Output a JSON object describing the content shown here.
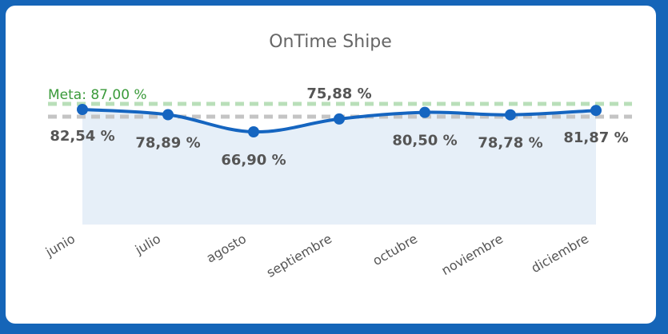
{
  "chart_data": {
    "type": "line",
    "title": "OnTime Shipe",
    "categories": [
      "junio",
      "julio",
      "agosto",
      "septiembre",
      "octubre",
      "noviembre",
      "diciembre"
    ],
    "values": [
      82.54,
      78.89,
      66.9,
      75.88,
      80.5,
      78.78,
      81.87
    ],
    "data_labels": [
      "82,54 %",
      "78,89 %",
      "66,90 %",
      "75,88 %",
      "80,50 %",
      "78,78 %",
      "81,87 %"
    ],
    "goal": {
      "label": "Meta: 87,00 %",
      "value": 87.0
    },
    "xlabel": "",
    "ylabel": "",
    "grid": false,
    "legend": "none",
    "colors": {
      "line": "#1565c0",
      "area": "#e6eff8",
      "goal_line": "#b9dfb9",
      "reference_line": "#c4c4c4",
      "frame": "#1565b8"
    }
  }
}
